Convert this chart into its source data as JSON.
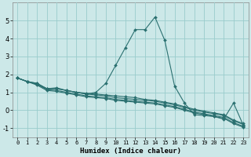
{
  "xlabel": "Humidex (Indice chaleur)",
  "bg_color": "#cce8e8",
  "grid_color": "#99cccc",
  "line_color": "#2a7070",
  "xlim": [
    -0.5,
    23.5
  ],
  "ylim": [
    -1.5,
    6.0
  ],
  "yticks": [
    -1,
    0,
    1,
    2,
    3,
    4,
    5
  ],
  "xticks": [
    0,
    1,
    2,
    3,
    4,
    5,
    6,
    7,
    8,
    9,
    10,
    11,
    12,
    13,
    14,
    15,
    16,
    17,
    18,
    19,
    20,
    21,
    22,
    23
  ],
  "peak_x": [
    0,
    1,
    2,
    3,
    4,
    5,
    6,
    7,
    8,
    9,
    10,
    11,
    12,
    13,
    14,
    15,
    16,
    17,
    18,
    19,
    20,
    21,
    22,
    23
  ],
  "peak_y": [
    1.8,
    1.6,
    1.5,
    1.2,
    1.2,
    1.1,
    1.0,
    0.9,
    1.0,
    1.5,
    2.5,
    3.5,
    4.5,
    4.5,
    5.2,
    3.9,
    1.35,
    0.4,
    -0.25,
    -0.3,
    -0.35,
    -0.5,
    0.4,
    -0.85
  ],
  "line1_x": [
    0,
    1,
    2,
    3,
    4,
    5,
    6,
    7,
    8,
    9,
    10,
    11,
    12,
    13,
    14,
    15,
    16,
    17,
    18,
    19,
    20,
    21,
    22,
    23
  ],
  "line1_y": [
    1.8,
    1.6,
    1.5,
    1.2,
    1.2,
    1.1,
    1.0,
    0.9,
    0.85,
    0.8,
    0.7,
    0.65,
    0.6,
    0.55,
    0.5,
    0.4,
    0.3,
    0.15,
    0.0,
    -0.1,
    -0.2,
    -0.3,
    -0.6,
    -0.8
  ],
  "line2_x": [
    0,
    1,
    2,
    3,
    4,
    5,
    6,
    7,
    8,
    9,
    10,
    11,
    12,
    13,
    14,
    15,
    16,
    17,
    18,
    19,
    20,
    21,
    22,
    23
  ],
  "line2_y": [
    1.8,
    1.6,
    1.45,
    1.15,
    1.1,
    1.0,
    0.9,
    0.8,
    0.75,
    0.7,
    0.6,
    0.55,
    0.5,
    0.45,
    0.4,
    0.3,
    0.2,
    0.05,
    -0.1,
    -0.2,
    -0.3,
    -0.4,
    -0.7,
    -0.9
  ],
  "line3_x": [
    0,
    1,
    2,
    3,
    4,
    5,
    6,
    7,
    8,
    9,
    10,
    11,
    12,
    13,
    14,
    15,
    16,
    17,
    18,
    19,
    20,
    21,
    22,
    23
  ],
  "line3_y": [
    1.8,
    1.6,
    1.4,
    1.1,
    1.05,
    0.95,
    0.85,
    0.75,
    0.7,
    0.65,
    0.55,
    0.5,
    0.45,
    0.4,
    0.35,
    0.25,
    0.15,
    0.0,
    -0.15,
    -0.25,
    -0.35,
    -0.45,
    -0.75,
    -0.95
  ],
  "line4_x": [
    0,
    1,
    2,
    3,
    4,
    5,
    6,
    7,
    8,
    9,
    10,
    11,
    12,
    13,
    14,
    15,
    16,
    17,
    18,
    19,
    20,
    21,
    22,
    23
  ],
  "line4_y": [
    1.8,
    1.6,
    1.45,
    1.2,
    1.25,
    1.1,
    1.0,
    0.95,
    0.9,
    0.85,
    0.8,
    0.75,
    0.7,
    0.6,
    0.55,
    0.45,
    0.35,
    0.2,
    0.05,
    -0.05,
    -0.15,
    -0.25,
    -0.55,
    -0.75
  ]
}
